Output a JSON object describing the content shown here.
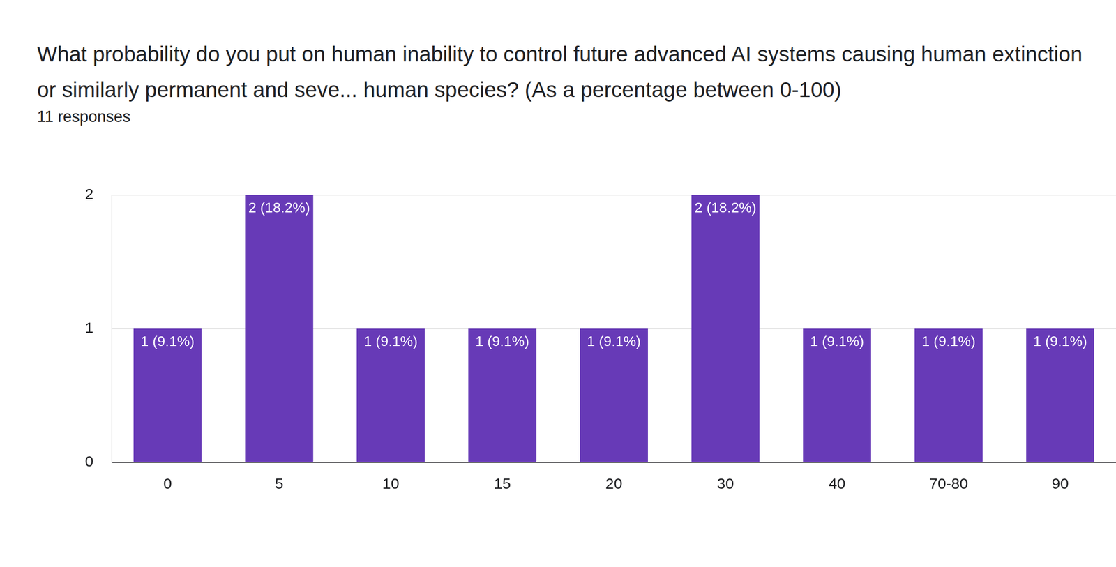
{
  "chart_data": {
    "type": "bar",
    "title": "What probability do you put on human inability to control future advanced AI systems causing human extinction or similarly permanent and seve... human species? (As a percentage between 0-100)",
    "subtitle": "11 responses",
    "categories": [
      "0",
      "5",
      "10",
      "15",
      "20",
      "30",
      "40",
      "70-80",
      "90"
    ],
    "values": [
      1,
      2,
      1,
      1,
      1,
      2,
      1,
      1,
      1
    ],
    "value_labels": [
      "1 (9.1%)",
      "2 (18.2%)",
      "1 (9.1%)",
      "1 (9.1%)",
      "1 (9.1%)",
      "2 (18.2%)",
      "1 (9.1%)",
      "1 (9.1%)",
      "1 (9.1%)"
    ],
    "color": "#673ab7",
    "ylim": [
      0,
      2
    ],
    "yticks": [
      0,
      1,
      2
    ],
    "grid": true,
    "data_labels": true
  }
}
